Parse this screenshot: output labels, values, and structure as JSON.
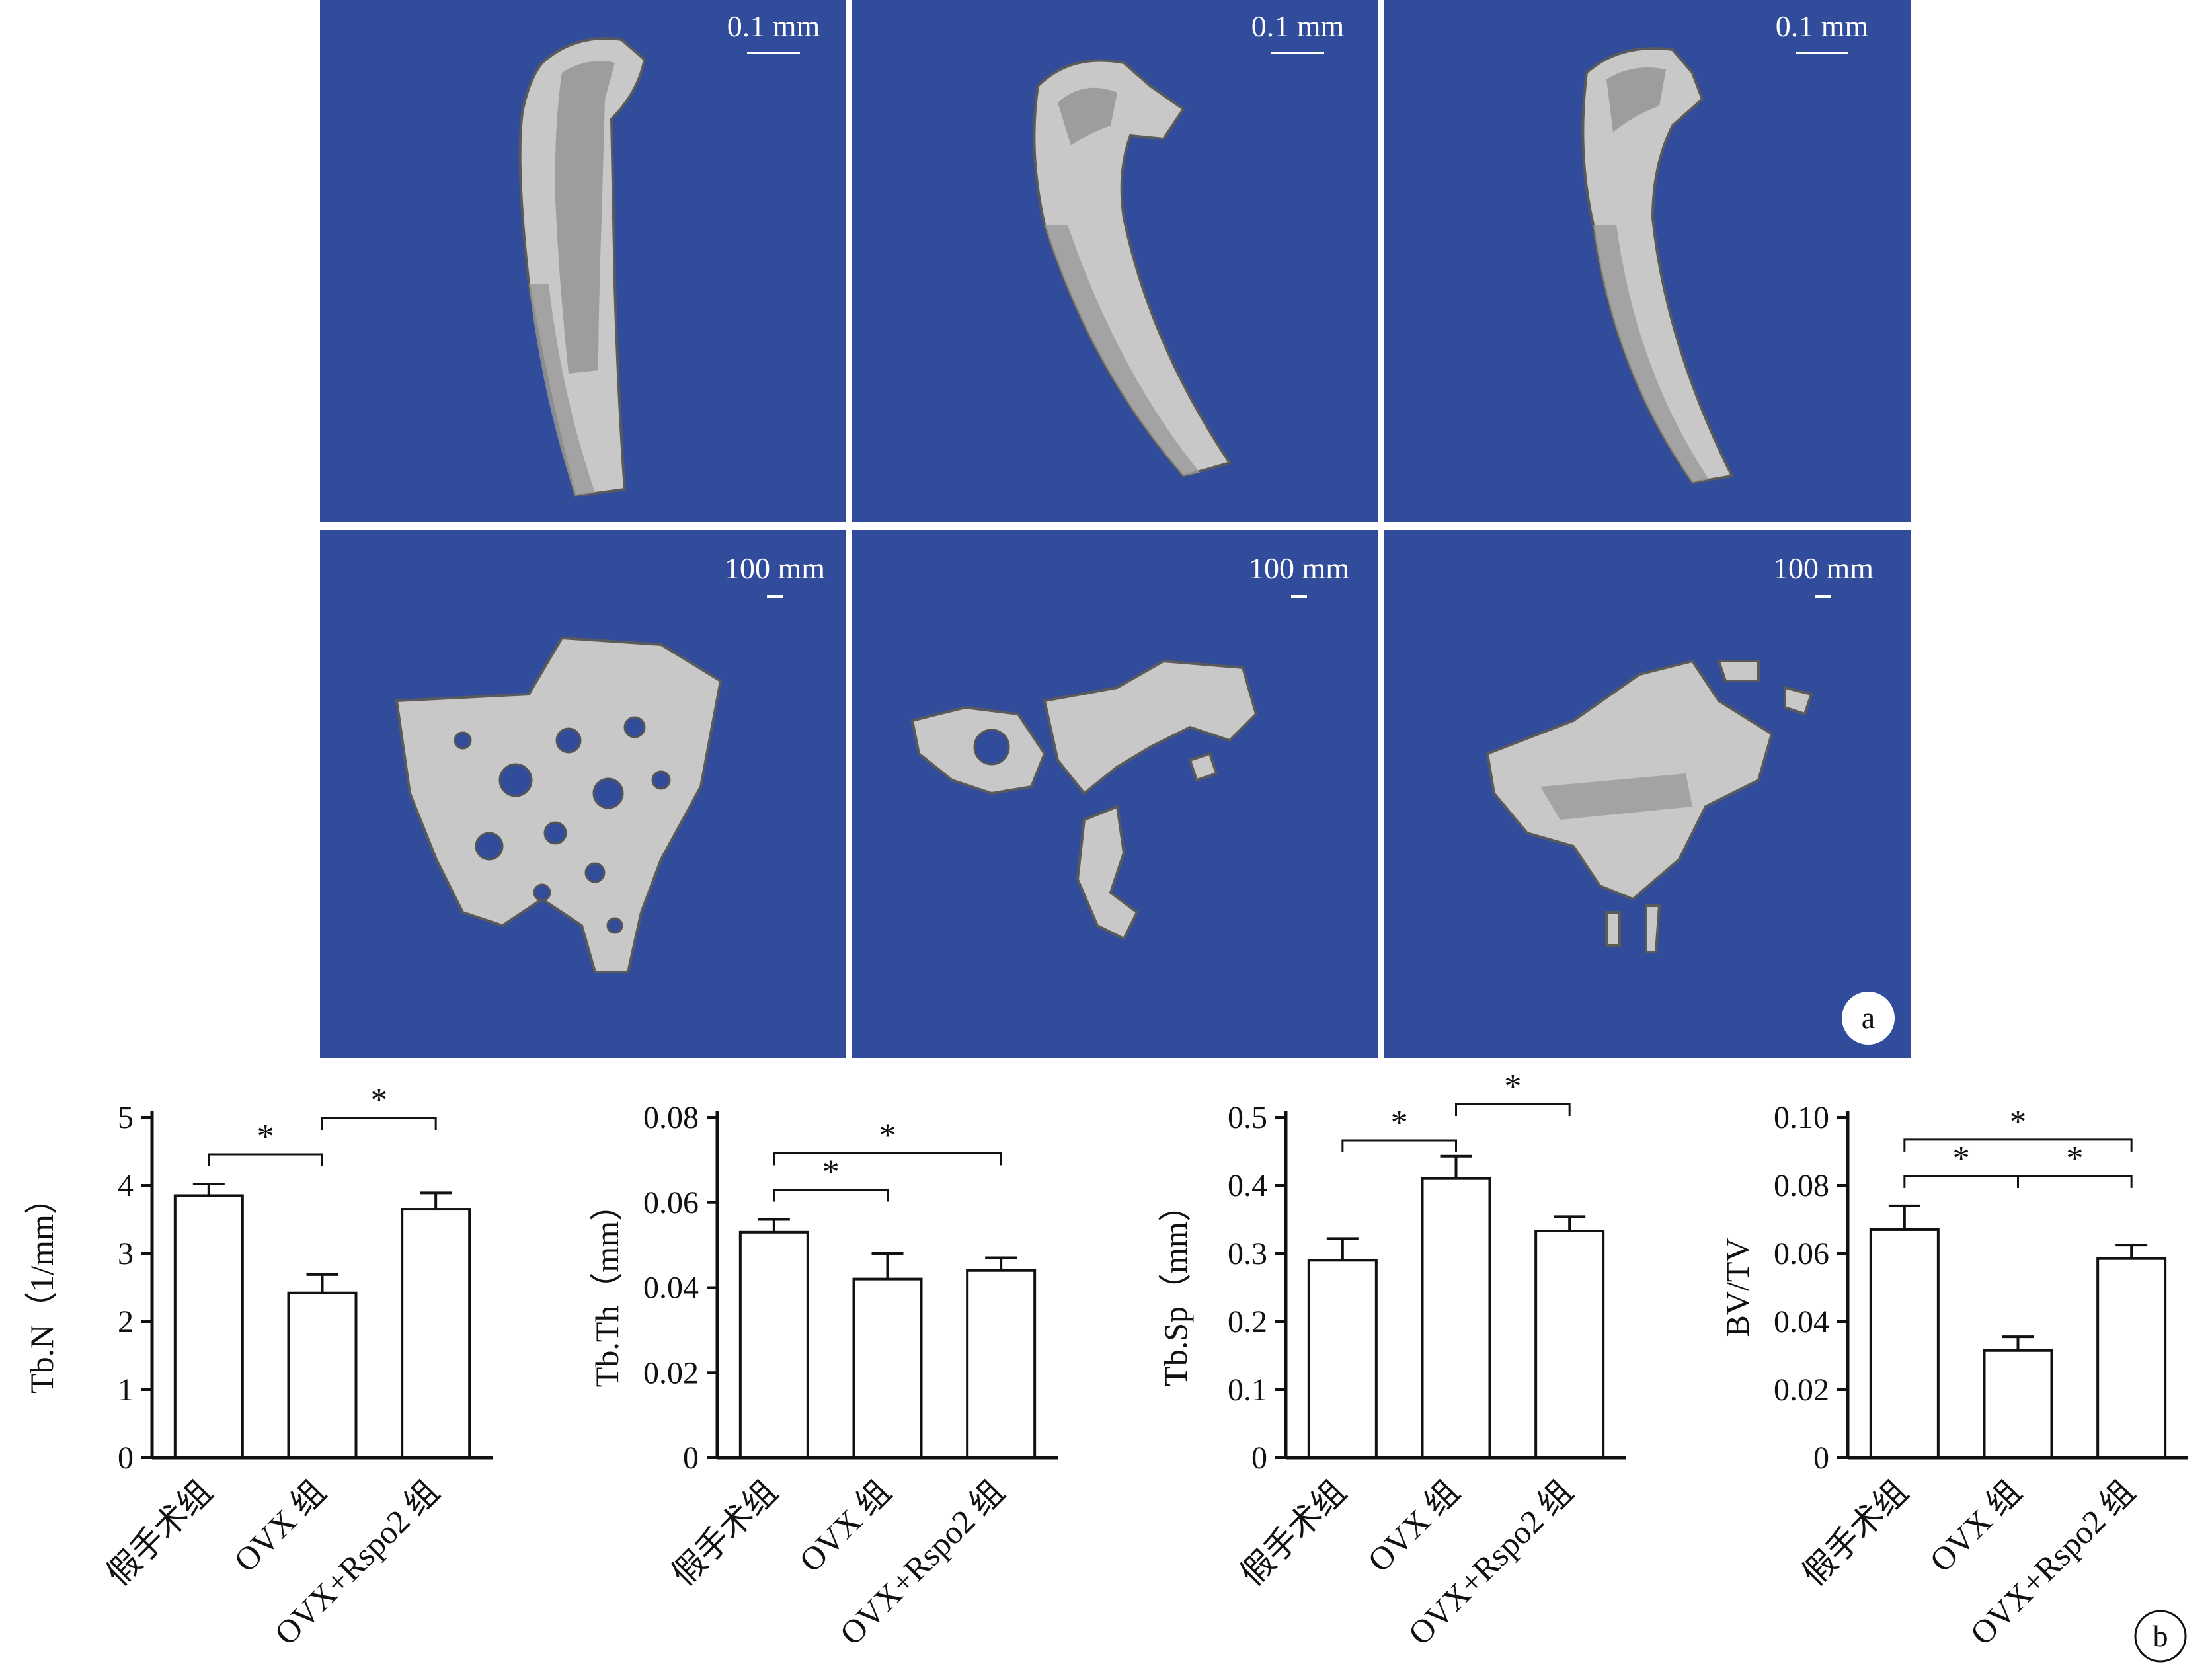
{
  "figure": {
    "panel_a_label": "a",
    "panel_b_label": "b",
    "images": {
      "background_color": "#324c9c",
      "row1_scale": "0.1 mm",
      "row2_scale": "100 mm"
    },
    "colors": {
      "bar_fill": "#ffffff",
      "stroke": "#111111",
      "bone": "#c8c8c8"
    }
  },
  "chart_data": [
    {
      "type": "bar",
      "categories": [
        "假手术组",
        "OVX 组",
        "OVX+Rspo2 组"
      ],
      "values": [
        3.85,
        2.42,
        3.65
      ],
      "errors": [
        0.17,
        0.27,
        0.24
      ],
      "ylabel": "Tb.N（1/mm）",
      "ylim": [
        0,
        5
      ],
      "yticks": [
        "0",
        "1",
        "2",
        "3",
        "4",
        "5"
      ],
      "significance": [
        {
          "from": 0,
          "to": 1,
          "label": "*",
          "level": 0
        },
        {
          "from": 1,
          "to": 2,
          "label": "*",
          "level": 1
        }
      ]
    },
    {
      "type": "bar",
      "categories": [
        "假手术组",
        "OVX 组",
        "OVX+Rspo2 组"
      ],
      "values": [
        0.053,
        0.042,
        0.044
      ],
      "errors": [
        0.003,
        0.006,
        0.003
      ],
      "ylabel": "Tb.Th（mm）",
      "ylim": [
        0,
        0.08
      ],
      "yticks": [
        "0",
        "0.02",
        "0.04",
        "0.06",
        "0.08"
      ],
      "significance": [
        {
          "from": 0,
          "to": 1,
          "label": "*",
          "level": 0
        },
        {
          "from": 0,
          "to": 2,
          "label": "*",
          "level": 1
        }
      ]
    },
    {
      "type": "bar",
      "categories": [
        "假手术组",
        "OVX 组",
        "OVX+Rspo2 组"
      ],
      "values": [
        0.29,
        0.41,
        0.333
      ],
      "errors": [
        0.032,
        0.033,
        0.021
      ],
      "ylabel": "Tb.Sp（mm）",
      "ylim": [
        0,
        0.5
      ],
      "yticks": [
        "0",
        "0.1",
        "0.2",
        "0.3",
        "0.4",
        "0.5"
      ],
      "significance": [
        {
          "from": 0,
          "to": 1,
          "label": "*",
          "level": 0
        },
        {
          "from": 1,
          "to": 2,
          "label": "*",
          "level": 1
        }
      ]
    },
    {
      "type": "bar",
      "categories": [
        "假手术组",
        "OVX 组",
        "OVX+Rspo2 组"
      ],
      "values": [
        0.067,
        0.0315,
        0.0585
      ],
      "errors": [
        0.007,
        0.004,
        0.004
      ],
      "ylabel": "BV/TV",
      "ylim": [
        0,
        0.1
      ],
      "yticks": [
        "0",
        "0.02",
        "0.04",
        "0.06",
        "0.08",
        "0.10"
      ],
      "significance": [
        {
          "from": 0,
          "to": 1,
          "label": "*",
          "level": 0
        },
        {
          "from": 1,
          "to": 2,
          "label": "*",
          "level": 0
        },
        {
          "from": 0,
          "to": 2,
          "label": "*",
          "level": 1
        }
      ]
    }
  ]
}
